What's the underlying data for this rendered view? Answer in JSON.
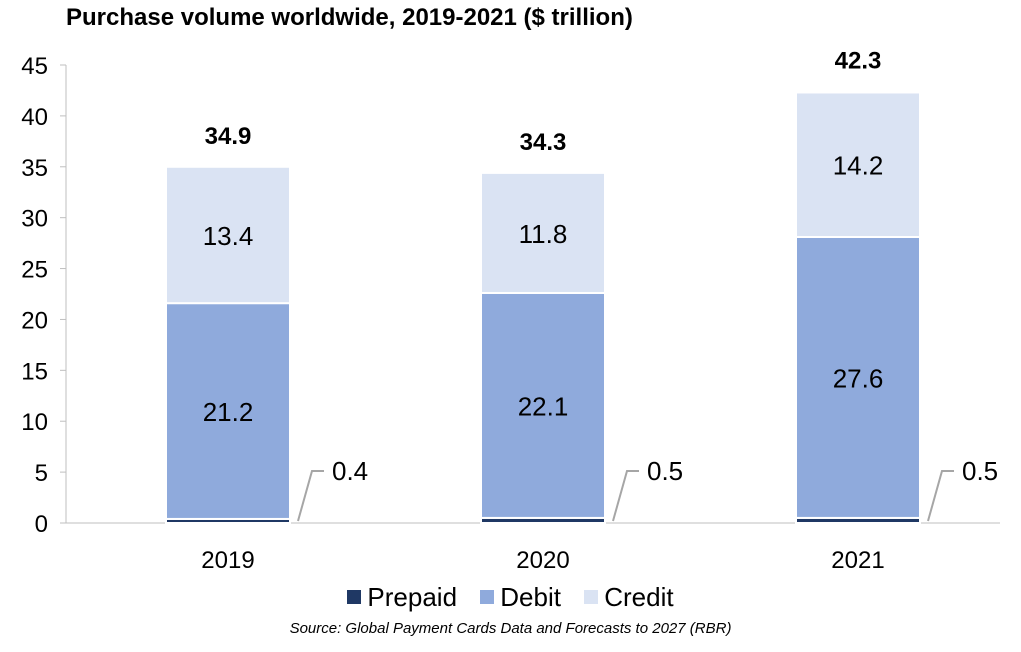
{
  "chart_data": {
    "type": "bar",
    "stacked": true,
    "title": "Purchase volume worldwide, 2019-2021 ($ trillion)",
    "categories": [
      "2019",
      "2020",
      "2021"
    ],
    "series": [
      {
        "name": "Prepaid",
        "values": [
          0.4,
          0.5,
          0.5
        ],
        "color": "#1f3864"
      },
      {
        "name": "Debit",
        "values": [
          21.2,
          22.1,
          27.6
        ],
        "color": "#8faadc"
      },
      {
        "name": "Credit",
        "values": [
          13.4,
          11.8,
          14.2
        ],
        "color": "#dae3f3"
      }
    ],
    "totals": [
      34.9,
      34.3,
      42.3
    ],
    "total_labels": [
      "34.9",
      "34.3",
      "42.3"
    ],
    "data_labels": {
      "Prepaid": [
        "0.4",
        "0.5",
        "0.5"
      ],
      "Debit": [
        "21.2",
        "22.1",
        "27.6"
      ],
      "Credit": [
        "13.4",
        "11.8",
        "14.2"
      ]
    },
    "ylim": [
      0,
      45
    ],
    "yticks": [
      0,
      5,
      10,
      15,
      20,
      25,
      30,
      35,
      40,
      45
    ],
    "legend_position": "bottom",
    "grid": false
  },
  "source": "Source: Global Payment Cards Data and Forecasts to 2027 (RBR)"
}
